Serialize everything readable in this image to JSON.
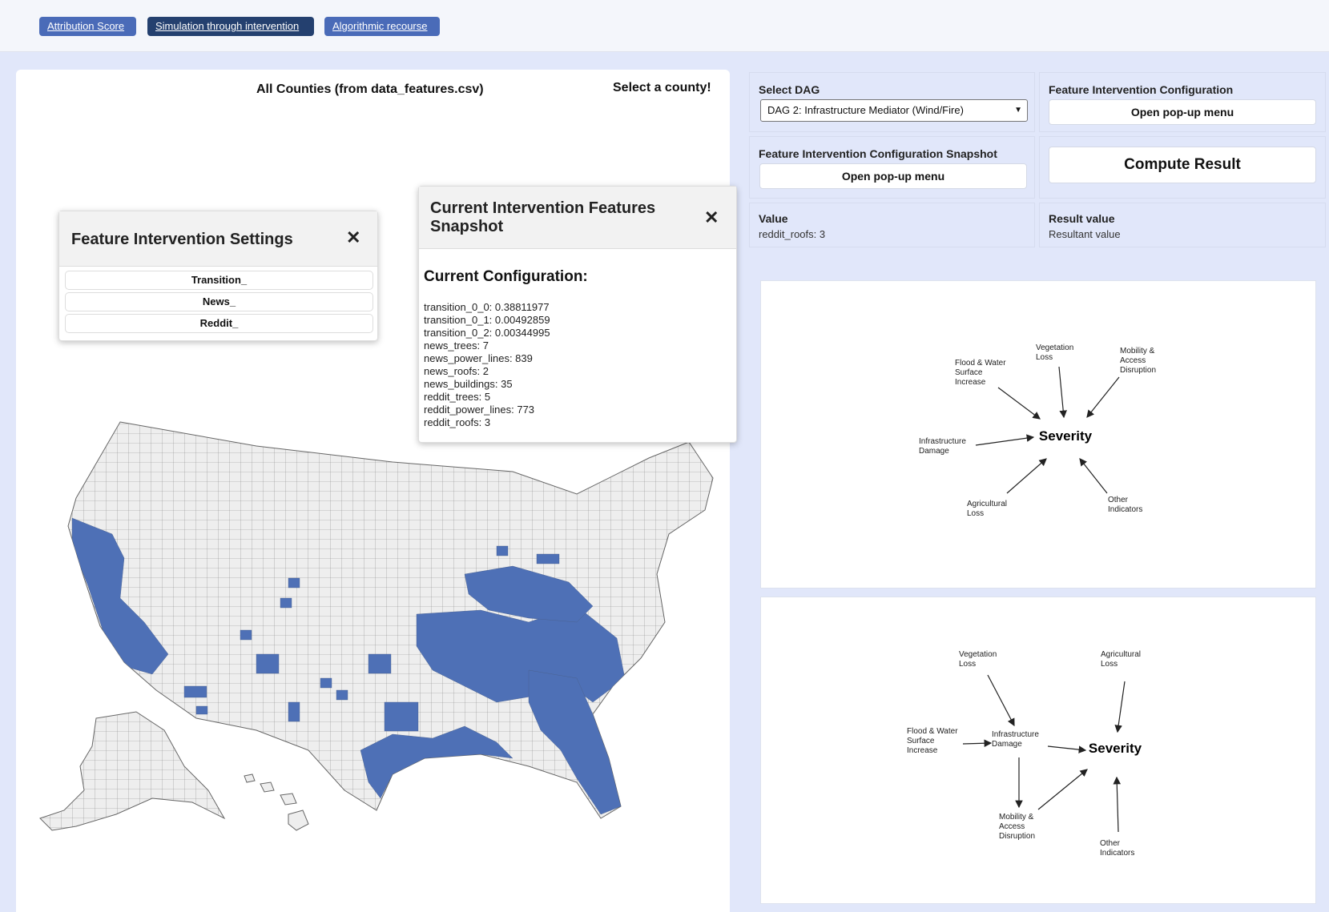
{
  "nav": {
    "tabs": [
      {
        "label": "Attribution Score"
      },
      {
        "label": "Simulation through intervention"
      },
      {
        "label": "Algorithmic recourse"
      }
    ]
  },
  "map_panel": {
    "title": "All Counties (from data_features.csv)",
    "select_prompt": "Select a county!",
    "highlight_color": "#4e70b6",
    "base_color": "#eeeeee"
  },
  "fis_panel": {
    "title": "Feature Intervention Settings",
    "close_icon": "close-icon",
    "items": [
      {
        "label": "Transition_"
      },
      {
        "label": "News_"
      },
      {
        "label": "Reddit_"
      }
    ]
  },
  "snapshot_panel": {
    "title": "Current Intervention Features Snapshot",
    "subtitle": "Current Configuration:",
    "close_icon": "close-icon",
    "lines": [
      "transition_0_0: 0.38811977",
      "transition_0_1: 0.00492859",
      "transition_0_2: 0.00344995",
      "news_trees: 7",
      "news_power_lines: 839",
      "news_roofs: 2",
      "news_buildings: 35",
      "reddit_trees: 5",
      "reddit_power_lines: 773",
      "reddit_roofs: 3"
    ]
  },
  "controls": {
    "select_dag_label": "Select DAG",
    "select_dag_value": "DAG 2: Infrastructure Mediator (Wind/Fire)",
    "fic_label": "Feature Intervention Configuration",
    "fic_button": "Open pop-up menu",
    "ficsnap_label": "Feature Intervention Configuration Snapshot",
    "ficsnap_button": "Open pop-up menu",
    "compute_button": "Compute Result",
    "value_label": "Value",
    "value_text": "reddit_roofs: 3",
    "result_label": "Result value",
    "result_text": "Resultant value"
  },
  "dag1": {
    "center": "Severity",
    "nodes": [
      {
        "lines": [
          "Vegetation",
          "Loss"
        ]
      },
      {
        "lines": [
          "Mobility &",
          "Access",
          "Disruption"
        ]
      },
      {
        "lines": [
          "Flood & Water",
          "Surface",
          "Increase"
        ]
      },
      {
        "lines": [
          "Infrastructure",
          "Damage"
        ]
      },
      {
        "lines": [
          "Agricultural",
          "Loss"
        ]
      },
      {
        "lines": [
          "Other",
          "Indicators"
        ]
      }
    ]
  },
  "dag2": {
    "center": "Severity",
    "nodes": [
      {
        "lines": [
          "Vegetation",
          "Loss"
        ]
      },
      {
        "lines": [
          "Agricultural",
          "Loss"
        ]
      },
      {
        "lines": [
          "Flood & Water",
          "Surface",
          "Increase"
        ]
      },
      {
        "lines": [
          "Infrastructure",
          "Damage"
        ]
      },
      {
        "lines": [
          "Mobility &",
          "Access",
          "Disruption"
        ]
      },
      {
        "lines": [
          "Other",
          "Indicators"
        ]
      }
    ]
  }
}
